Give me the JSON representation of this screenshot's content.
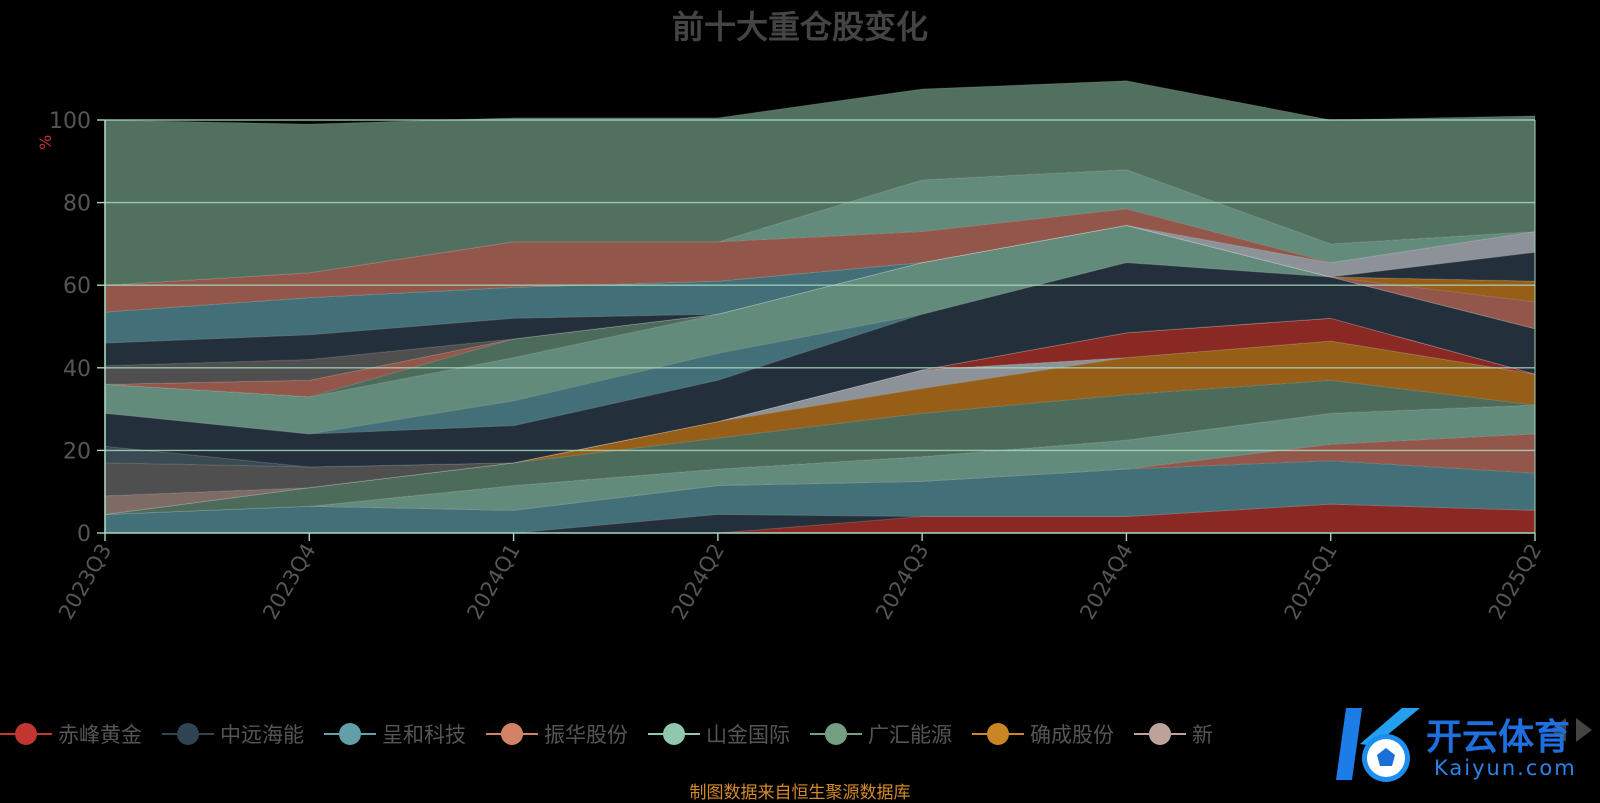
{
  "chart_data": {
    "type": "area",
    "title": "前十大重仓股变化",
    "unit_label": "%",
    "ylim": [
      0,
      100
    ],
    "yticks": [
      0,
      20,
      40,
      60,
      80,
      100
    ],
    "categories": [
      "2023Q3",
      "2023Q4",
      "2024Q1",
      "2024Q2",
      "2024Q3",
      "2024Q4",
      "2025Q1",
      "2025Q2"
    ],
    "stack_order": "bottom-to-top",
    "grid": true,
    "legend_position": "bottom",
    "layers": [
      {
        "color": "#8a2823",
        "values": [
          0,
          0,
          0,
          0,
          4,
          4,
          7,
          5.5
        ]
      },
      {
        "color": "#232f3a",
        "values": [
          0,
          0,
          0,
          4.5,
          0,
          0,
          0,
          0
        ]
      },
      {
        "color": "#426f78",
        "values": [
          4.5,
          6.5,
          5.5,
          7,
          8.5,
          11.5,
          10.5,
          9
        ]
      },
      {
        "color": "#92574a",
        "values": [
          0,
          0,
          0,
          0,
          0,
          0,
          4,
          9.5
        ]
      },
      {
        "color": "#628b7b",
        "values": [
          0,
          0,
          6,
          4,
          6,
          7,
          7.5,
          7
        ]
      },
      {
        "color": "#4c6b5a",
        "values": [
          0,
          4.5,
          5.5,
          7.5,
          10.5,
          11,
          8,
          0
        ]
      },
      {
        "color": "#965e16",
        "values": [
          0,
          0,
          0,
          4,
          6,
          9,
          9.5,
          7.5
        ]
      },
      {
        "color": "#8d9298",
        "values": [
          0,
          0,
          0,
          0,
          4.5,
          0,
          0,
          0
        ]
      },
      {
        "color": "#8a2823",
        "values": [
          0,
          0,
          0,
          0,
          0,
          6,
          5.5,
          0
        ]
      },
      {
        "color": "#7f6b65",
        "values": [
          4.5,
          0,
          0,
          0,
          0,
          0,
          0,
          0
        ]
      },
      {
        "color": "#4f4f4f",
        "values": [
          8,
          5,
          0,
          0,
          0,
          0,
          0,
          0
        ]
      },
      {
        "color": "#3a4a52",
        "values": [
          4,
          0,
          0,
          0,
          0,
          0,
          0,
          0
        ]
      },
      {
        "color": "#232f3a",
        "values": [
          8,
          8,
          9,
          10,
          13.5,
          17,
          10,
          11
        ]
      },
      {
        "color": "#426f78",
        "values": [
          0,
          0,
          6,
          6.5,
          0,
          0,
          0,
          0
        ]
      },
      {
        "color": "#628b7b",
        "values": [
          7,
          9,
          10.5,
          9.5,
          12.5,
          9,
          0,
          0
        ]
      },
      {
        "color": "#4c6b5a",
        "values": [
          0,
          0,
          4.5,
          0,
          0,
          0,
          0,
          0
        ]
      },
      {
        "color": "#92574a",
        "values": [
          0,
          4,
          0,
          0,
          0,
          0,
          0,
          6.5
        ]
      },
      {
        "color": "#965e16",
        "values": [
          0,
          0,
          0,
          0,
          0,
          0,
          0,
          5
        ]
      },
      {
        "color": "#4f4f4f",
        "values": [
          4.5,
          5,
          0,
          0,
          0,
          0,
          0,
          0
        ]
      },
      {
        "color": "#232f3a",
        "values": [
          5.5,
          6,
          5,
          0,
          0,
          0,
          0,
          7
        ]
      },
      {
        "color": "#426f78",
        "values": [
          7.5,
          9,
          7.5,
          8,
          0,
          0,
          0,
          0
        ]
      },
      {
        "color": "#8d9298",
        "values": [
          0,
          0,
          0,
          0,
          0,
          0,
          3.5,
          5
        ]
      },
      {
        "color": "#92574a",
        "values": [
          6.5,
          6,
          11,
          9.5,
          7.5,
          4,
          0,
          0
        ]
      },
      {
        "color": "#628b7b",
        "values": [
          0,
          0,
          0,
          0,
          12.5,
          9.5,
          4.5,
          0
        ]
      },
      {
        "color": "#527060",
        "values": [
          40,
          36,
          30,
          30,
          22,
          21.5,
          30,
          28
        ]
      }
    ]
  },
  "legend": {
    "items": [
      {
        "label": "赤峰黄金",
        "color": "#c23531"
      },
      {
        "label": "中远海能",
        "color": "#2f4554"
      },
      {
        "label": "呈和科技",
        "color": "#61a0a8"
      },
      {
        "label": "振华股份",
        "color": "#d48265"
      },
      {
        "label": "山金国际",
        "color": "#91c7ae"
      },
      {
        "label": "广汇能源",
        "color": "#749f83"
      },
      {
        "label": "确成股份",
        "color": "#ca8622"
      },
      {
        "label": "新",
        "color": "#bda29a"
      }
    ]
  },
  "source_note": "制图数据来自恒生聚源数据库",
  "watermark": {
    "title": "开云体育",
    "subtitle": "Kaiyun.com"
  }
}
